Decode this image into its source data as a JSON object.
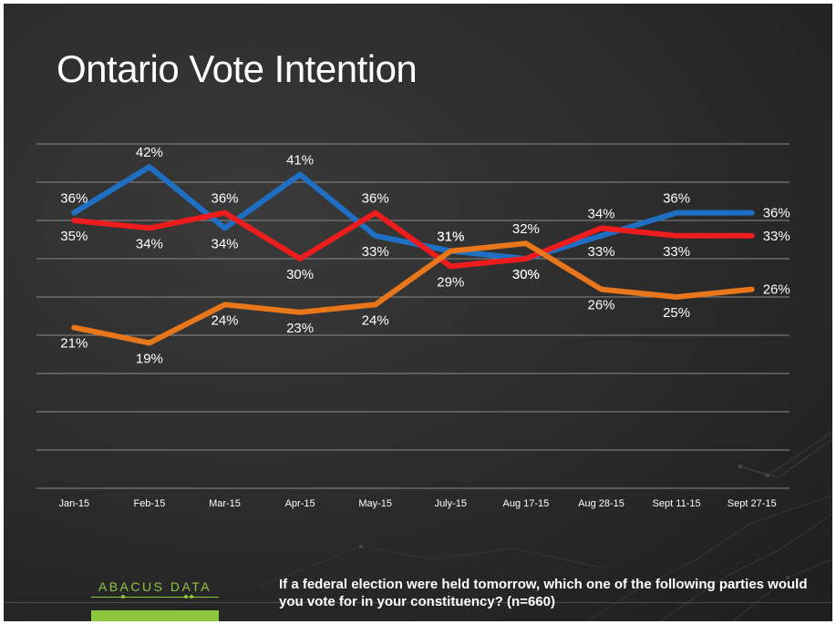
{
  "slide": {
    "title": "Ontario Vote Intention",
    "question": "If a federal election were held tomorrow, which one of the following parties would you vote for in your constituency? (n=660)",
    "logo_text": "ABACUS DATA",
    "brand_color": "#8dc63f"
  },
  "chart_data": {
    "type": "line",
    "title": "Ontario Vote Intention",
    "categories": [
      "Jan-15",
      "Feb-15",
      "Mar-15",
      "Apr-15",
      "May-15",
      "July-15",
      "Aug 17-15",
      "Aug 28-15",
      "Sept 11-15",
      "Sept 27-15"
    ],
    "ylim": [
      0,
      45
    ],
    "grid": true,
    "legend": "none",
    "series": [
      {
        "color": "#1f6fc5",
        "values": [
          36,
          42,
          34,
          41,
          33,
          31,
          30,
          33,
          36,
          36
        ]
      },
      {
        "color": "#ee1c1c",
        "values": [
          35,
          34,
          36,
          30,
          36,
          29,
          30,
          34,
          33,
          33
        ]
      },
      {
        "color": "#e8761b",
        "values": [
          21,
          19,
          24,
          23,
          24,
          31,
          32,
          26,
          25,
          26
        ]
      }
    ]
  }
}
